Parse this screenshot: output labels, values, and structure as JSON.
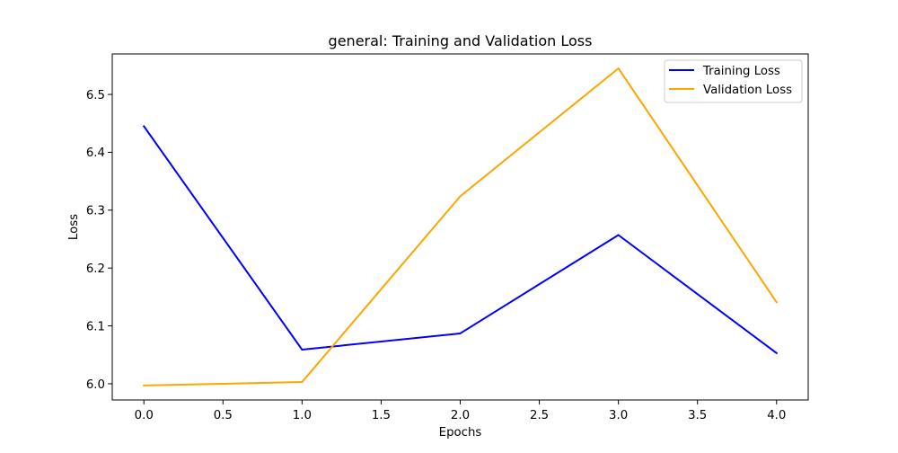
{
  "chart_data": {
    "type": "line",
    "title": "general: Training and Validation Loss",
    "xlabel": "Epochs",
    "ylabel": "Loss",
    "x": [
      0,
      1,
      2,
      3,
      4
    ],
    "xlim": [
      -0.2,
      4.2
    ],
    "ylim": [
      5.972,
      6.57
    ],
    "xticks": [
      0.0,
      0.5,
      1.0,
      1.5,
      2.0,
      2.5,
      3.0,
      3.5,
      4.0
    ],
    "xtick_labels": [
      "0.0",
      "0.5",
      "1.0",
      "1.5",
      "2.0",
      "2.5",
      "3.0",
      "3.5",
      "4.0"
    ],
    "yticks": [
      6.0,
      6.1,
      6.2,
      6.3,
      6.4,
      6.5
    ],
    "ytick_labels": [
      "6.0",
      "6.1",
      "6.2",
      "6.3",
      "6.4",
      "6.5"
    ],
    "grid": false,
    "legend_position": "top-right",
    "series": [
      {
        "name": "Training Loss",
        "color": "#0000ff",
        "values": [
          6.445,
          6.059,
          6.087,
          6.257,
          6.053
        ]
      },
      {
        "name": "Validation Loss",
        "color": "#ffa500",
        "values": [
          5.997,
          6.003,
          6.324,
          6.545,
          6.141
        ]
      }
    ]
  }
}
